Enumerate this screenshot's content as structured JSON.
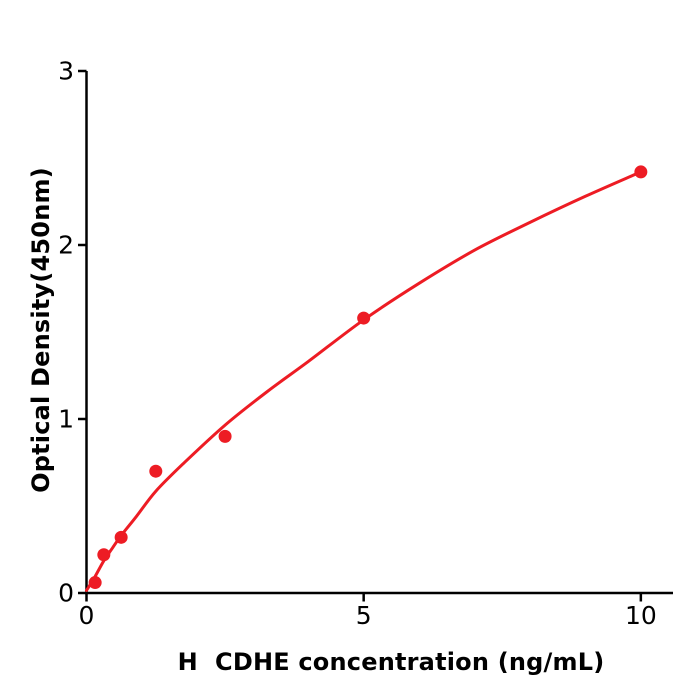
{
  "chart_data": {
    "type": "scatter",
    "subtype": "scatter-with-fitted-curve",
    "title": "",
    "xlabel": "H  CDHE concentration (ng/mL)",
    "ylabel": "Optical Density(450nm)",
    "xlim": [
      0,
      10.58
    ],
    "ylim": [
      0,
      3
    ],
    "x_ticks": [
      0,
      5,
      10
    ],
    "y_ticks": [
      0,
      1,
      2,
      3
    ],
    "grid": false,
    "legend_position": "none",
    "points": [
      {
        "x": 0.156,
        "y": 0.06
      },
      {
        "x": 0.3125,
        "y": 0.22
      },
      {
        "x": 0.625,
        "y": 0.32
      },
      {
        "x": 1.25,
        "y": 0.7
      },
      {
        "x": 2.5,
        "y": 0.9
      },
      {
        "x": 5,
        "y": 1.58
      },
      {
        "x": 10,
        "y": 2.42
      }
    ],
    "fit_curve": [
      [
        0,
        0.015
      ],
      [
        0.08,
        0.055
      ],
      [
        0.156,
        0.095
      ],
      [
        0.3125,
        0.185
      ],
      [
        0.47,
        0.26
      ],
      [
        0.625,
        0.33
      ],
      [
        0.9,
        0.44
      ],
      [
        1.25,
        0.585
      ],
      [
        1.75,
        0.745
      ],
      [
        2.5,
        0.965
      ],
      [
        3.25,
        1.155
      ],
      [
        4.0,
        1.33
      ],
      [
        5.0,
        1.57
      ],
      [
        6.0,
        1.78
      ],
      [
        7.0,
        1.97
      ],
      [
        8.0,
        2.13
      ],
      [
        9.0,
        2.28
      ],
      [
        10.0,
        2.42
      ]
    ],
    "colors": {
      "series": "#ed1c24",
      "axis": "#000000",
      "tick_label": "#000000",
      "background": "#ffffff"
    }
  }
}
